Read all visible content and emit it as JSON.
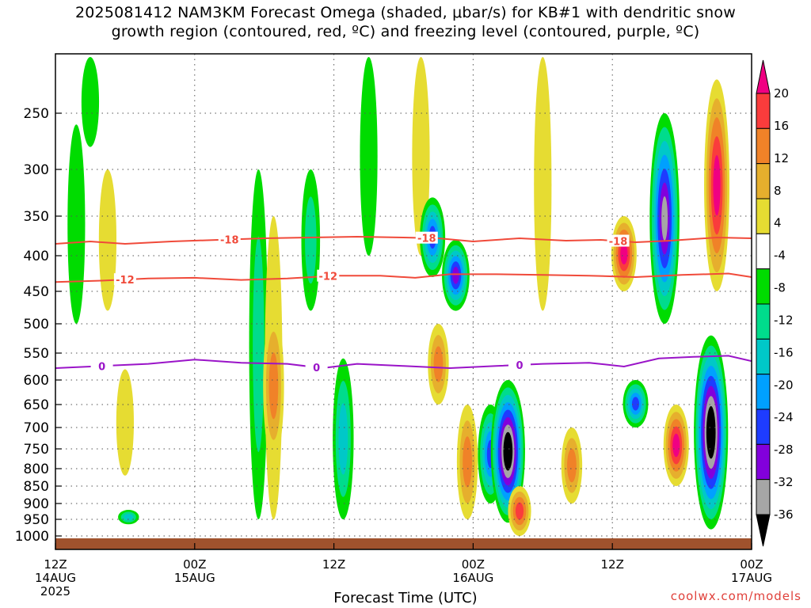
{
  "title_line1": "2025081412 NAM3KM Forecast Omega (shaded, μbar/s) for KB#1 with dendritic snow",
  "title_line2": "growth region (contoured, red, ºC) and freezing level (contoured, purple, ºC)",
  "credit": "coolwx.com/models",
  "colors": {
    "ramp": [
      "#000000",
      "#a6a6a6",
      "#8200dc",
      "#1e3cff",
      "#00a0ff",
      "#00c8c8",
      "#00dc8c",
      "#00dc00",
      "#ffffff",
      "#e6dc32",
      "#e6af2d",
      "#f08228",
      "#fa3c3c",
      "#f00082"
    ],
    "dendritic": "#f04a3a",
    "freezing": "#9a14c8",
    "ground": "#a0522d"
  },
  "chart_data": {
    "type": "heatmap",
    "xlabel": "Forecast Time (UTC)",
    "ylabel": "",
    "x_ticks": [
      {
        "hour": 0,
        "label1": "12Z",
        "label2": "14AUG",
        "label3": "2025"
      },
      {
        "hour": 12,
        "label1": "00Z",
        "label2": "15AUG",
        "label3": ""
      },
      {
        "hour": 24,
        "label1": "12Z",
        "label2": "",
        "label3": ""
      },
      {
        "hour": 36,
        "label1": "00Z",
        "label2": "16AUG",
        "label3": ""
      },
      {
        "hour": 48,
        "label1": "12Z",
        "label2": "",
        "label3": ""
      },
      {
        "hour": 60,
        "label1": "00Z",
        "label2": "17AUG",
        "label3": ""
      }
    ],
    "x_range_hours": [
      0,
      60
    ],
    "y_ticks": [
      250,
      300,
      350,
      400,
      450,
      500,
      550,
      600,
      650,
      700,
      750,
      800,
      850,
      900,
      950,
      1000
    ],
    "y_range_hPa": [
      200,
      1010
    ],
    "colorbar": {
      "labels": [
        "20",
        "16",
        "12",
        "8",
        "4",
        "-4",
        "-8",
        "-12",
        "-16",
        "-20",
        "-24",
        "-28",
        "-32",
        "-36"
      ]
    },
    "contours": [
      {
        "name": "-18",
        "kind": "dendritic",
        "label_hours": [
          15,
          32,
          48.5
        ],
        "points": [
          [
            0,
            385
          ],
          [
            3,
            382
          ],
          [
            6,
            385
          ],
          [
            10,
            382
          ],
          [
            14,
            380
          ],
          [
            18,
            378
          ],
          [
            22,
            377
          ],
          [
            26,
            376
          ],
          [
            30,
            377
          ],
          [
            33,
            378
          ],
          [
            36,
            382
          ],
          [
            40,
            378
          ],
          [
            44,
            381
          ],
          [
            47,
            380
          ],
          [
            50,
            383
          ],
          [
            53,
            381
          ],
          [
            57,
            377
          ],
          [
            60,
            378
          ]
        ]
      },
      {
        "name": "-12",
        "kind": "dendritic",
        "label_hours": [
          6,
          23.5
        ],
        "points": [
          [
            0,
            437
          ],
          [
            4,
            435
          ],
          [
            8,
            432
          ],
          [
            12,
            431
          ],
          [
            16,
            434
          ],
          [
            20,
            432
          ],
          [
            24,
            428
          ],
          [
            28,
            428
          ],
          [
            31,
            431
          ],
          [
            34,
            426
          ],
          [
            38,
            426
          ],
          [
            42,
            427
          ],
          [
            46,
            428
          ],
          [
            50,
            430
          ],
          [
            54,
            427
          ],
          [
            58,
            425
          ],
          [
            60,
            430
          ]
        ]
      },
      {
        "name": "0",
        "kind": "freezing",
        "label_hours": [
          4,
          22.5,
          40
        ],
        "points": [
          [
            0,
            578
          ],
          [
            4,
            574
          ],
          [
            8,
            570
          ],
          [
            12,
            562
          ],
          [
            16,
            568
          ],
          [
            20,
            570
          ],
          [
            23,
            578
          ],
          [
            26,
            570
          ],
          [
            30,
            574
          ],
          [
            34,
            578
          ],
          [
            38,
            574
          ],
          [
            42,
            570
          ],
          [
            46,
            568
          ],
          [
            49,
            575
          ],
          [
            52,
            560
          ],
          [
            55,
            557
          ],
          [
            58,
            555
          ],
          [
            60,
            565
          ]
        ]
      }
    ],
    "omega_features": [
      {
        "hour": 1.8,
        "p_top": 260,
        "p_bot": 500,
        "value": -6
      },
      {
        "hour": 3.0,
        "p_top": 200,
        "p_bot": 280,
        "value": -6
      },
      {
        "hour": 4.5,
        "p_top": 300,
        "p_bot": 480,
        "value": 6
      },
      {
        "hour": 6.3,
        "p_top": 920,
        "p_bot": 965,
        "value": -12
      },
      {
        "hour": 6.0,
        "p_top": 580,
        "p_bot": 820,
        "value": 6
      },
      {
        "hour": 17.5,
        "p_top": 300,
        "p_bot": 950,
        "value": -8
      },
      {
        "hour": 18.8,
        "p_top": 350,
        "p_bot": 950,
        "value": 6
      },
      {
        "hour": 18.8,
        "p_top": 480,
        "p_bot": 780,
        "value": 12
      },
      {
        "hour": 22.0,
        "p_top": 300,
        "p_bot": 480,
        "value": -8
      },
      {
        "hour": 24.8,
        "p_top": 560,
        "p_bot": 950,
        "value": -12
      },
      {
        "hour": 27.0,
        "p_top": 200,
        "p_bot": 400,
        "value": -6
      },
      {
        "hour": 31.5,
        "p_top": 200,
        "p_bot": 400,
        "value": 6
      },
      {
        "hour": 32.5,
        "p_top": 330,
        "p_bot": 430,
        "value": -20
      },
      {
        "hour": 33.0,
        "p_top": 500,
        "p_bot": 650,
        "value": 12
      },
      {
        "hour": 34.5,
        "p_top": 380,
        "p_bot": 480,
        "value": -24
      },
      {
        "hour": 35.5,
        "p_top": 650,
        "p_bot": 950,
        "value": 12
      },
      {
        "hour": 37.5,
        "p_top": 650,
        "p_bot": 900,
        "value": -20
      },
      {
        "hour": 39.0,
        "p_top": 600,
        "p_bot": 960,
        "value": -36
      },
      {
        "hour": 40.0,
        "p_top": 850,
        "p_bot": 1000,
        "value": 16
      },
      {
        "hour": 42.0,
        "p_top": 200,
        "p_bot": 480,
        "value": 6
      },
      {
        "hour": 44.5,
        "p_top": 700,
        "p_bot": 900,
        "value": 12
      },
      {
        "hour": 49.0,
        "p_top": 350,
        "p_bot": 450,
        "value": 20
      },
      {
        "hour": 50.0,
        "p_top": 600,
        "p_bot": 700,
        "value": -20
      },
      {
        "hour": 52.5,
        "p_top": 250,
        "p_bot": 500,
        "value": -28
      },
      {
        "hour": 53.5,
        "p_top": 650,
        "p_bot": 850,
        "value": 20
      },
      {
        "hour": 56.5,
        "p_top": 520,
        "p_bot": 980,
        "value": -36
      },
      {
        "hour": 57.0,
        "p_top": 220,
        "p_bot": 450,
        "value": 20
      }
    ]
  }
}
